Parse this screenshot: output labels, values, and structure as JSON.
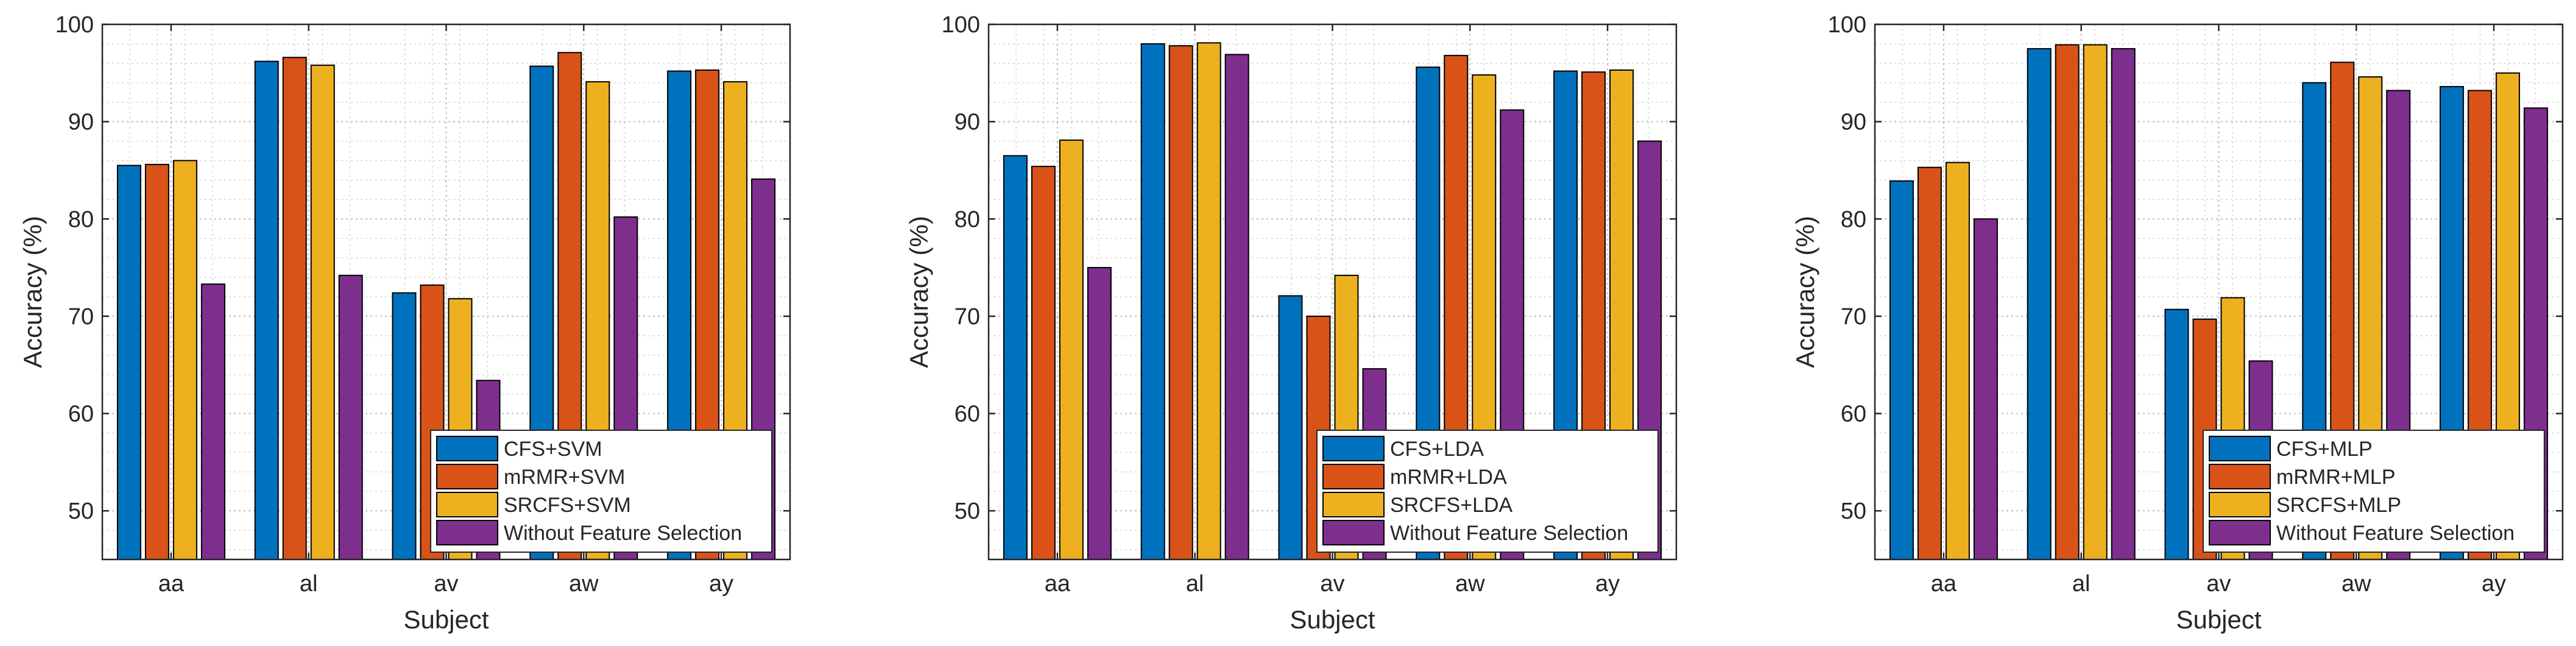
{
  "chart_data": [
    {
      "type": "bar",
      "title": "",
      "xlabel": "Subject",
      "ylabel": "Accuracy (%)",
      "ylim": [
        45,
        100
      ],
      "yticks": [
        50,
        60,
        70,
        80,
        90,
        100
      ],
      "grid": true,
      "legend_position": "bottom-right",
      "categories": [
        "aa",
        "al",
        "av",
        "aw",
        "ay"
      ],
      "series": [
        {
          "name": "CFS+SVM",
          "color": "#0072BD",
          "values": [
            85.5,
            96.2,
            72.4,
            95.7,
            95.2
          ]
        },
        {
          "name": "mRMR+SVM",
          "color": "#D95319",
          "values": [
            85.6,
            96.6,
            73.2,
            97.1,
            95.3
          ]
        },
        {
          "name": "SRCFS+SVM",
          "color": "#EDB120",
          "values": [
            86.0,
            95.8,
            71.8,
            94.1,
            94.1
          ]
        },
        {
          "name": "Without Feature Selection",
          "color": "#7E2F8E",
          "values": [
            73.3,
            74.2,
            63.4,
            80.2,
            84.1
          ]
        }
      ]
    },
    {
      "type": "bar",
      "title": "",
      "xlabel": "Subject",
      "ylabel": "Accuracy (%)",
      "ylim": [
        45,
        100
      ],
      "yticks": [
        50,
        60,
        70,
        80,
        90,
        100
      ],
      "grid": true,
      "legend_position": "bottom-right",
      "categories": [
        "aa",
        "al",
        "av",
        "aw",
        "ay"
      ],
      "series": [
        {
          "name": "CFS+LDA",
          "color": "#0072BD",
          "values": [
            86.5,
            98.0,
            72.1,
            95.6,
            95.2
          ]
        },
        {
          "name": "mRMR+LDA",
          "color": "#D95319",
          "values": [
            85.4,
            97.8,
            70.0,
            96.8,
            95.1
          ]
        },
        {
          "name": "SRCFS+LDA",
          "color": "#EDB120",
          "values": [
            88.1,
            98.1,
            74.2,
            94.8,
            95.3
          ]
        },
        {
          "name": "Without Feature Selection",
          "color": "#7E2F8E",
          "values": [
            75.0,
            96.9,
            64.6,
            91.2,
            88.0
          ]
        }
      ]
    },
    {
      "type": "bar",
      "title": "",
      "xlabel": "Subject",
      "ylabel": "Accuracy (%)",
      "ylim": [
        45,
        100
      ],
      "yticks": [
        50,
        60,
        70,
        80,
        90,
        100
      ],
      "grid": true,
      "legend_position": "bottom-right",
      "categories": [
        "aa",
        "al",
        "av",
        "aw",
        "ay"
      ],
      "series": [
        {
          "name": "CFS+MLP",
          "color": "#0072BD",
          "values": [
            83.9,
            97.5,
            70.7,
            94.0,
            93.6
          ]
        },
        {
          "name": "mRMR+MLP",
          "color": "#D95319",
          "values": [
            85.3,
            97.9,
            69.7,
            96.1,
            93.2
          ]
        },
        {
          "name": "SRCFS+MLP",
          "color": "#EDB120",
          "values": [
            85.8,
            97.9,
            71.9,
            94.6,
            95.0
          ]
        },
        {
          "name": "Without Feature Selection",
          "color": "#7E2F8E",
          "values": [
            80.0,
            97.5,
            65.4,
            93.2,
            91.4
          ]
        }
      ]
    }
  ]
}
